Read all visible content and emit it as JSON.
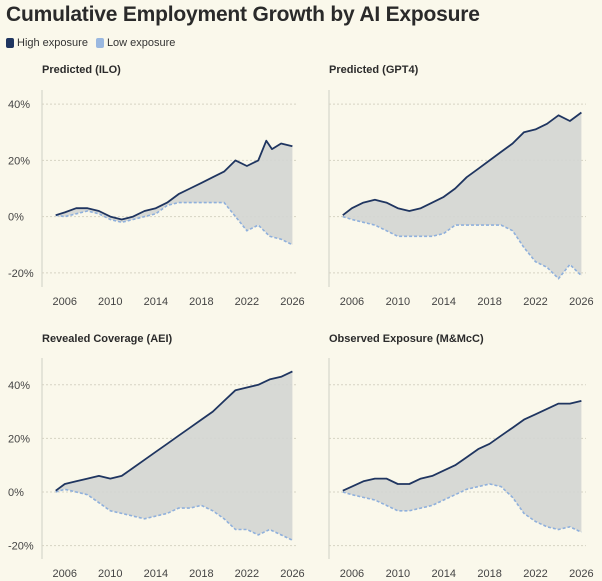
{
  "title": "Cumulative Employment Growth by AI Exposure",
  "legend": [
    {
      "label": "High exposure",
      "color": "#1f3560"
    },
    {
      "label": "Low exposure",
      "color": "#9ab8e0"
    }
  ],
  "chart_data": [
    {
      "type": "line",
      "title": "Predicted (ILO)",
      "xlim": [
        2004,
        2026.4
      ],
      "ylim": [
        -25,
        45
      ],
      "xticks": [
        2006,
        2010,
        2014,
        2018,
        2022,
        2026
      ],
      "yticks": [
        -20,
        0,
        20,
        40
      ],
      "ytick_labels": [
        "-20%",
        "0%",
        "20%",
        "40%"
      ],
      "fill_between": true,
      "series": [
        {
          "name": "High exposure",
          "style": "solid",
          "x": [
            2005.2,
            2006,
            2007,
            2008,
            2009,
            2010,
            2011,
            2012,
            2013,
            2014,
            2015,
            2016,
            2017,
            2018,
            2019,
            2020,
            2021,
            2022,
            2023,
            2023.7,
            2024.2,
            2025,
            2026
          ],
          "y": [
            0.5,
            1.5,
            3,
            3,
            2,
            0,
            -1,
            0,
            2,
            3,
            5,
            8,
            10,
            12,
            14,
            16,
            20,
            18,
            20,
            27,
            24,
            26,
            25
          ]
        },
        {
          "name": "Low exposure",
          "style": "dashed",
          "x": [
            2005.2,
            2006,
            2007,
            2008,
            2009,
            2010,
            2011,
            2012,
            2013,
            2014,
            2015,
            2016,
            2017,
            2018,
            2019,
            2020,
            2021,
            2022,
            2023,
            2024,
            2025,
            2026
          ],
          "y": [
            0.5,
            0,
            1,
            2,
            1,
            -1,
            -2,
            -1,
            0,
            1,
            4,
            5,
            5,
            5,
            5,
            5,
            0,
            -5,
            -3,
            -7,
            -8,
            -10
          ]
        }
      ]
    },
    {
      "type": "line",
      "title": "Predicted (GPT4)",
      "xlim": [
        2004,
        2026.4
      ],
      "ylim": [
        -25,
        45
      ],
      "xticks": [
        2006,
        2010,
        2014,
        2018,
        2022,
        2026
      ],
      "yticks": [
        -20,
        0,
        20,
        40
      ],
      "ytick_labels": [
        "-20%",
        "0%",
        "20%",
        "40%"
      ],
      "fill_between": true,
      "series": [
        {
          "name": "High exposure",
          "style": "solid",
          "x": [
            2005.2,
            2006,
            2007,
            2008,
            2009,
            2010,
            2011,
            2012,
            2013,
            2014,
            2015,
            2016,
            2017,
            2018,
            2019,
            2020,
            2021,
            2022,
            2023,
            2024,
            2025,
            2026
          ],
          "y": [
            0.5,
            3,
            5,
            6,
            5,
            3,
            2,
            3,
            5,
            7,
            10,
            14,
            17,
            20,
            23,
            26,
            30,
            31,
            33,
            36,
            34,
            37
          ]
        },
        {
          "name": "Low exposure",
          "style": "dashed",
          "x": [
            2005.2,
            2006,
            2007,
            2008,
            2009,
            2010,
            2011,
            2012,
            2013,
            2014,
            2015,
            2016,
            2017,
            2018,
            2019,
            2020,
            2021,
            2022,
            2023,
            2024,
            2025,
            2026
          ],
          "y": [
            0,
            -1,
            -2,
            -3,
            -5,
            -7,
            -7,
            -7,
            -7,
            -6,
            -3,
            -3,
            -3,
            -3,
            -3,
            -5,
            -11,
            -16,
            -18,
            -22,
            -17,
            -21
          ]
        }
      ]
    },
    {
      "type": "line",
      "title": "Revealed Coverage (AEI)",
      "xlim": [
        2004,
        2026.4
      ],
      "ylim": [
        -25,
        50
      ],
      "xticks": [
        2006,
        2010,
        2014,
        2018,
        2022,
        2026
      ],
      "yticks": [
        -20,
        0,
        20,
        40
      ],
      "ytick_labels": [
        "-20%",
        "0%",
        "20%",
        "40%"
      ],
      "fill_between": true,
      "series": [
        {
          "name": "High exposure",
          "style": "solid",
          "x": [
            2005.2,
            2006,
            2007,
            2008,
            2009,
            2010,
            2011,
            2012,
            2013,
            2014,
            2015,
            2016,
            2017,
            2018,
            2019,
            2020,
            2021,
            2022,
            2023,
            2024,
            2025,
            2026
          ],
          "y": [
            0.5,
            3,
            4,
            5,
            6,
            5,
            6,
            9,
            12,
            15,
            18,
            21,
            24,
            27,
            30,
            34,
            38,
            39,
            40,
            42,
            43,
            45
          ]
        },
        {
          "name": "Low exposure",
          "style": "dashed",
          "x": [
            2005.2,
            2006,
            2007,
            2008,
            2009,
            2010,
            2011,
            2012,
            2013,
            2014,
            2015,
            2016,
            2017,
            2018,
            2019,
            2020,
            2021,
            2022,
            2023,
            2024,
            2025,
            2026
          ],
          "y": [
            0,
            1,
            0,
            -1,
            -4,
            -7,
            -8,
            -9,
            -10,
            -9,
            -8,
            -6,
            -6,
            -5,
            -7,
            -10,
            -14,
            -14,
            -16,
            -14,
            -16,
            -18
          ]
        }
      ]
    },
    {
      "type": "line",
      "title": "Observed Exposure (M&McC)",
      "xlim": [
        2004,
        2026.4
      ],
      "ylim": [
        -25,
        50
      ],
      "xticks": [
        2006,
        2010,
        2014,
        2018,
        2022,
        2026
      ],
      "yticks": [
        -20,
        0,
        20,
        40
      ],
      "ytick_labels": [
        "-20%",
        "0%",
        "20%",
        "40%"
      ],
      "fill_between": true,
      "series": [
        {
          "name": "High exposure",
          "style": "solid",
          "x": [
            2005.2,
            2006,
            2007,
            2008,
            2009,
            2010,
            2011,
            2012,
            2013,
            2014,
            2015,
            2016,
            2017,
            2018,
            2019,
            2020,
            2021,
            2022,
            2023,
            2024,
            2025,
            2026
          ],
          "y": [
            0.5,
            2,
            4,
            5,
            5,
            3,
            3,
            5,
            6,
            8,
            10,
            13,
            16,
            18,
            21,
            24,
            27,
            29,
            31,
            33,
            33,
            34
          ]
        },
        {
          "name": "Low exposure",
          "style": "dashed",
          "x": [
            2005.2,
            2006,
            2007,
            2008,
            2009,
            2010,
            2011,
            2012,
            2013,
            2014,
            2015,
            2016,
            2017,
            2018,
            2019,
            2020,
            2021,
            2022,
            2023,
            2024,
            2025,
            2026
          ],
          "y": [
            0,
            -1,
            -2,
            -3,
            -5,
            -7,
            -7,
            -6,
            -5,
            -3,
            -1,
            1,
            2,
            3,
            2,
            -2,
            -8,
            -11,
            -13,
            -14,
            -13,
            -15
          ]
        }
      ]
    }
  ],
  "colors": {
    "high_line": "#1f3560",
    "low_line": "#8fb0dc",
    "fill": "#d3d5d3",
    "axis": "#cfcfc6"
  }
}
